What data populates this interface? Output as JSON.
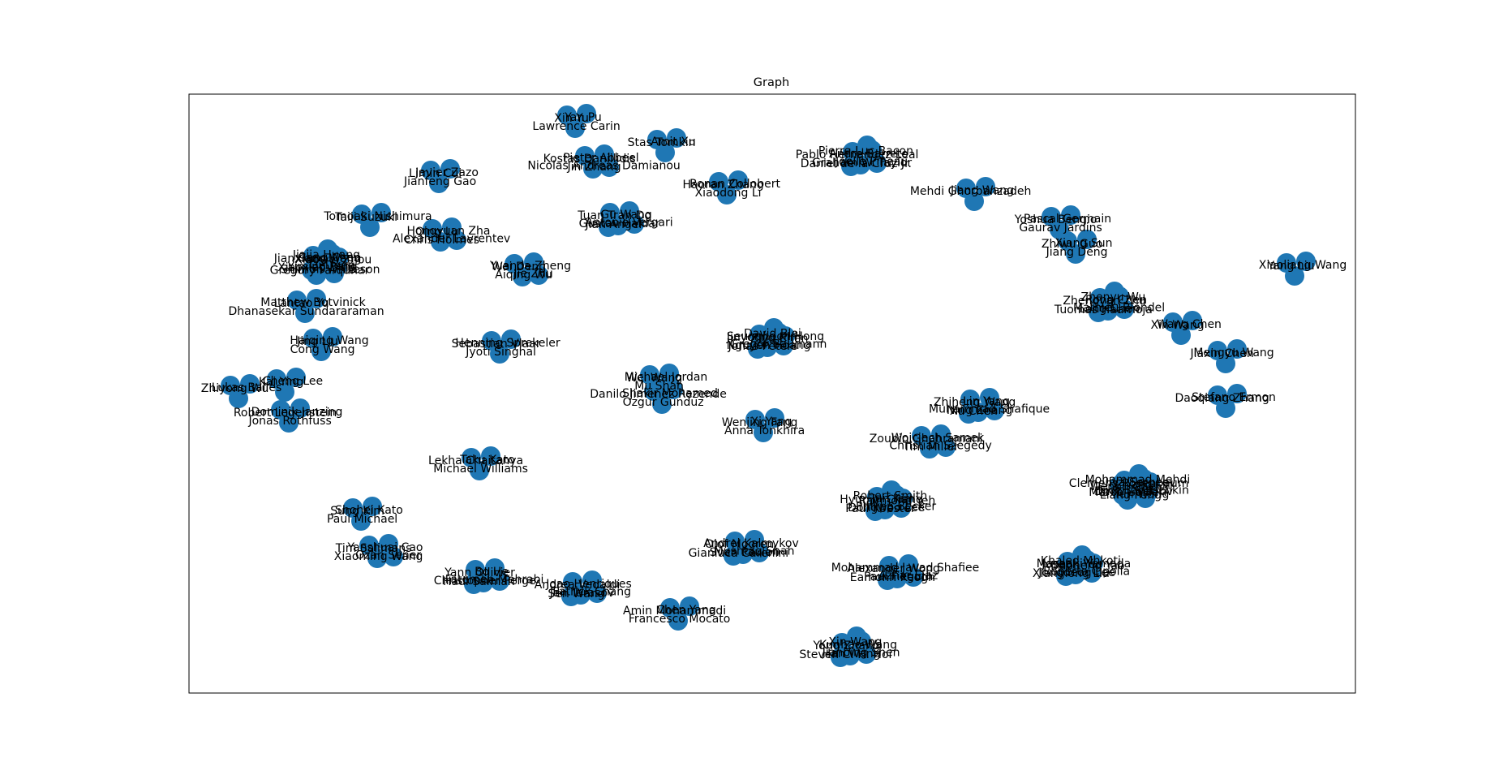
{
  "title": "Graph",
  "node_color": "#1f77b4",
  "labels": [
    "Xin Yu",
    "Yan Pu",
    "Lawrence Carin",
    "Stas Tomkin",
    "Amit Xu",
    "Kostas Daniilidis",
    "Pieter Abbeel",
    "Jin Zhang",
    "Nicolas Andreas Damianou",
    "Pablo Hernandez-Leal",
    "Andre Barreto",
    "Graham W. Taylor",
    "Joelle Pineau",
    "Daniel de la Cruz Jr.",
    "Pierre-Luc Bacon",
    "Mehdi Ghorbanzadeh",
    "Jiang Wang",
    "Haoran Zhang",
    "Ronan Collobert",
    "Xiaodong Li",
    "Limin Cui",
    "Javier Zazo",
    "Jianfeng Gao",
    "Taiji Suzuki",
    "Tomoaki Nishimura",
    "Tuan Tran Do",
    "Gu Wang",
    "Gustav Haldar",
    "Antonio Vergari",
    "Jian Angel",
    "Qing Lu",
    "Hongyuan Zha",
    "Chris Holmes",
    "Alexander Lavrentev",
    "Yoshua Bengio",
    "Pascal Germain",
    "Gaurav Jardins",
    "Zhiwu Guo",
    "Xiang Sun",
    "Jiang Deng",
    "Yang Liu",
    "Xiaoliang Wang",
    "Jianxiang Wang",
    "Gang Chen",
    "Yiming Peng",
    "Qi Deng",
    "Xiaoxiao Ding",
    "Jiajia Huang",
    "Xiaowei Zhou",
    "Gregory Farquhar",
    "Shimon Whiteson",
    "Wei Deng",
    "Yuanda Zheng",
    "Aiqing Wu",
    "Jie Zhu",
    "Zhengyan Zhu",
    "Rong Chen",
    "Long Chen",
    "Mathieu Blondel",
    "Tuomas Haarnoja",
    "Zhenyu Wu",
    "Xin Wang",
    "Wang Chen",
    "Jiaxin Chen",
    "Mengyu Wang",
    "Daoqiang Zhang",
    "Stefano Ermon",
    "Lantao Yu",
    "Matthew Botvinick",
    "Dhanasekar Sundararaman",
    "Sebastian Vlaar",
    "Henning Sprekeler",
    "Jyoti Singhal",
    "Jinyoung Kim",
    "Seunghoon Hong",
    "Nguyen Hoang",
    "Gregor Baumann",
    "Jonas Peters",
    "David Blei",
    "Ziyu Chen",
    "Wei Wang",
    "Michael Jordan",
    "Mu Shah",
    "Jing Liu",
    "Haiqing Wang",
    "Cong Wang",
    "Kai Ying",
    "Cheng Lee",
    "Zhiyong Wu",
    "Lukas Balles",
    "Robert Legenstein",
    "Dominik Janzing",
    "Jonas Rothfuss",
    "Zhiheng Wang",
    "Lin Yang",
    "Ning Zhang",
    "Muhammad Shafique",
    "Xu Chen",
    "Wenjing Fang",
    "Xi Yang",
    "Anna Tonkhira",
    "Danilo Jimenez Rezende",
    "Shakir Mohamed",
    "Ozgur Gunduz",
    "Zoubin Ghahramani",
    "Wojciech Samek",
    "Tim Miller",
    "Christian Szegedy",
    "Lekha Chaitanya",
    "Taku Kato",
    "Michael Williams",
    "Clemens Rosenbaum",
    "Ilya Sergeev",
    "Dmitry Vetrov",
    "Igor Babuschkin",
    "Marco Gallieri",
    "Mohammad Mehdi",
    "Zhang Lin",
    "Liang Feng",
    "Yun Wang",
    "Wenhu Chen",
    "Sung Kim",
    "Shohei Kato",
    "Paul Michael",
    "Hyunjin Chang",
    "Jun Kim",
    "Dongwoo Lee",
    "Philipp Becker",
    "Paul Koester",
    "Robert Smith",
    "Raymond Yeh",
    "Olof Mogren",
    "Andrei Kalmykov",
    "Sven Paulen",
    "Mushtaq Shah",
    "Gianluca Carenini",
    "Tim Salimans",
    "Yanshuai Cao",
    "Xiaoming Wang",
    "Ozan Sener",
    "Joseph Yoo",
    "Masaaki Yamada",
    "Jongdeog Lee",
    "Roberto Cipolla",
    "Xianglong Liu",
    "Khaled Mhkoti",
    "Daoheng Yao",
    "Yann Ollivier",
    "Bo He",
    "Christopher Perge",
    "Fatemeh Mehrabi",
    "Hadi Salman",
    "Andrea Vedaldi",
    "Joao Henriques",
    "Jan Tarasov",
    "Patrick Chang",
    "Sen Wang",
    "Amin Mohammadi",
    "Chen Yang",
    "Francesco Mocato",
    "Alexander Wong",
    "Mohammad Javad Shafiee",
    "Paul Fieguth",
    "Azhar Ejaz",
    "Eamonn Keogh",
    "Yong Zhang",
    "Kunhao Wang",
    "Han Wang",
    "Jianbing Shen",
    "Steven C. H. Hoi",
    "Xin Wang",
    "Jai Bardhan",
    "Junichi Takagishi",
    "Dacheng Tao"
  ]
}
